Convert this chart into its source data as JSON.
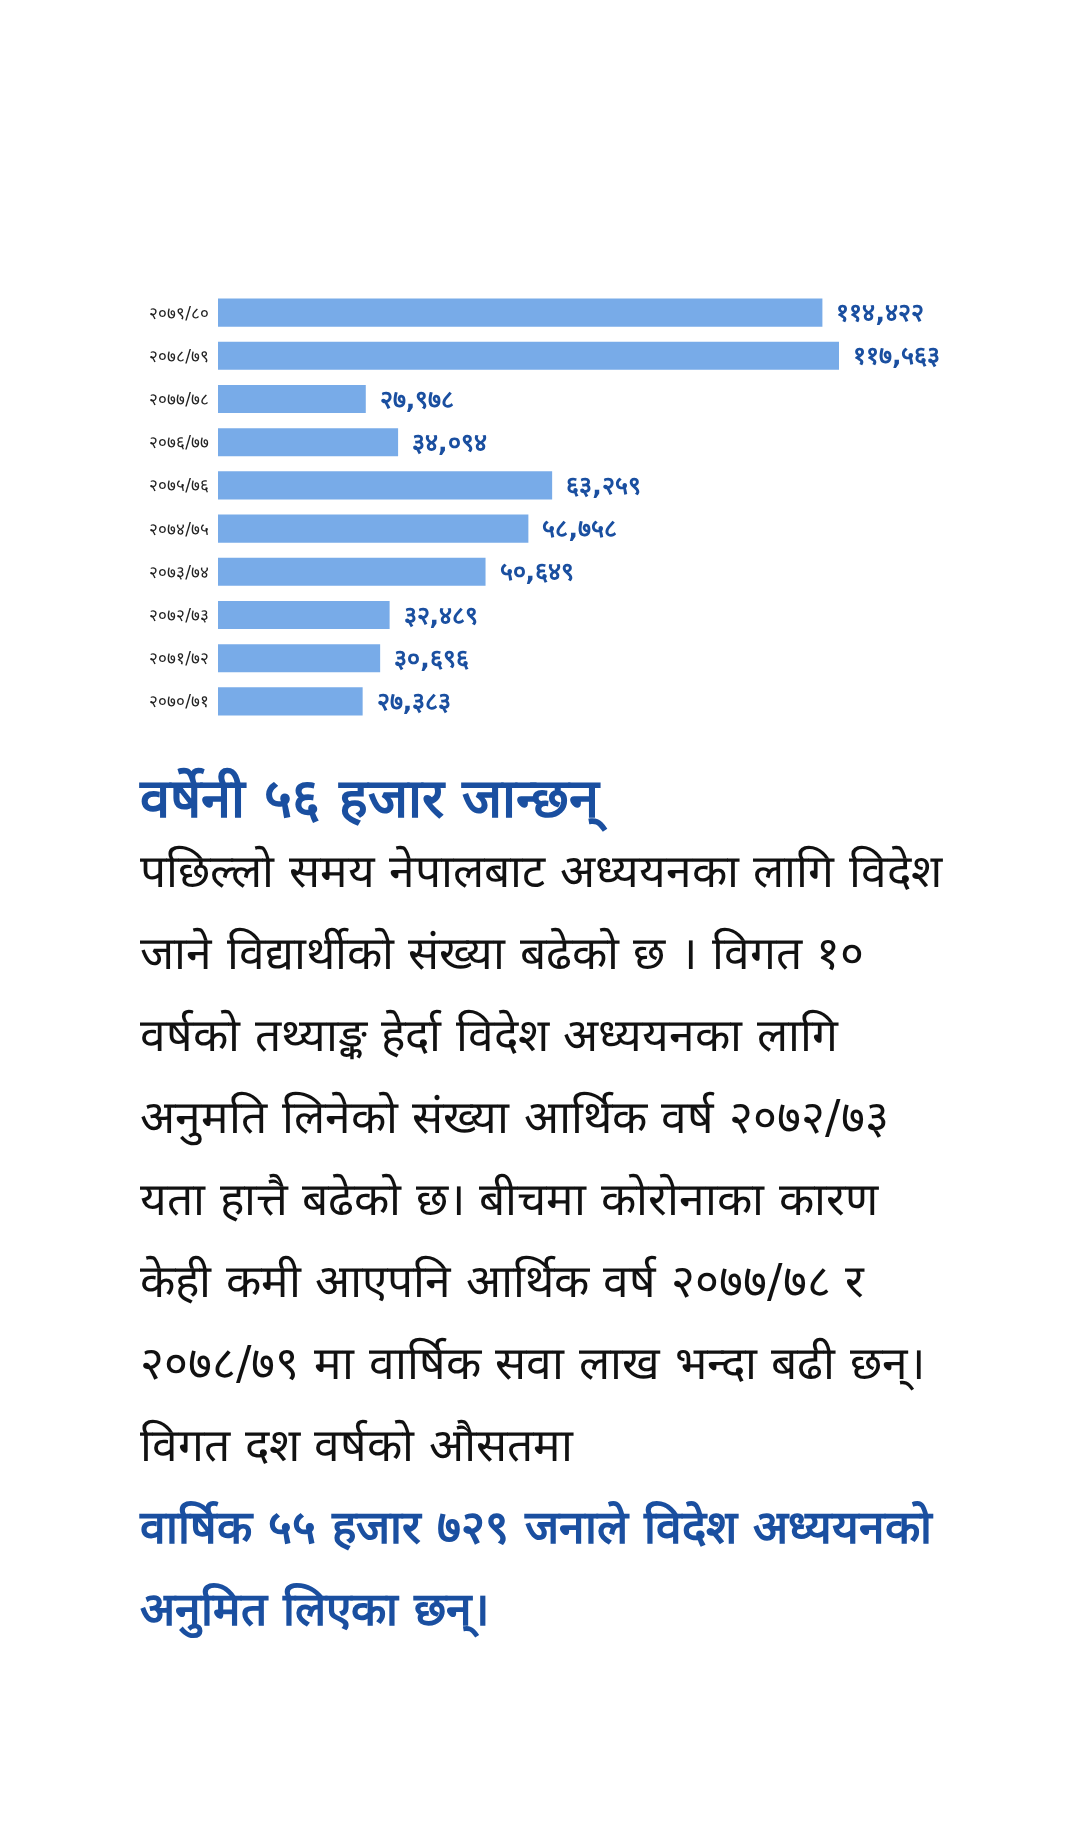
{
  "chart_data": {
    "type": "bar",
    "orientation": "horizontal",
    "title": "वर्षेनी ५६ हजार जान्छन्",
    "categories": [
      "२०७९/८०",
      "२०७८/७९",
      "२०७७/७८",
      "२०७६/७७",
      "२०७५/७६",
      "२०७४/७५",
      "२०७३/७४",
      "२०७२/७३",
      "२०७१/७२",
      "२०७०/७१"
    ],
    "values": [
      114422,
      117563,
      27978,
      34094,
      63259,
      58758,
      50649,
      32489,
      30696,
      27383
    ],
    "value_labels": [
      "११४,४२२",
      "११७,५६३",
      "२७,९७८",
      "३४,०९४",
      "६३,२५९",
      "५८,७५८",
      "५०,६४९",
      "३२,४८९",
      "३०,६९६",
      "२७,३८३"
    ],
    "color": "#78abe8",
    "tick_labels": "y",
    "annotations": [
      "पछिल्लो समय नेपालबाट अध्ययनका लागि विदेश जाने विद्यार्थीको संख्या बढेको छ । विगत १० वर्षको तथ्याङ्क हेर्दा विदेश अध्ययनका लागि अनुमति लिनेको संख्या आर्थिक वर्ष २०७२/७३ यता हात्तै बढेको छ। बीचमा कोरोनाका कारण केही कमी आएपनि आर्थिक वर्ष २०७७/७८ र २०७८/७९ मा वार्षिक सवा लाख भन्दा बढी छन्। विगत दश वर्षको औसतमा",
      "वार्षिक ५५ हजार ७२९ जनाले विदेश अध्ययनको अनुमित लिएका छन्।"
    ]
  }
}
